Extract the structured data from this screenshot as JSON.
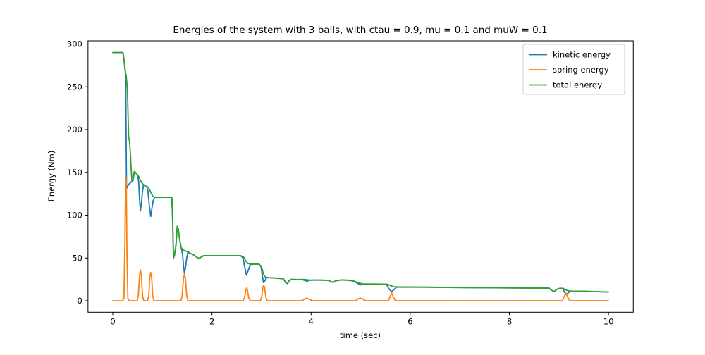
{
  "chart_data": {
    "type": "line",
    "title": "Energies of the system with 3 balls, with ctau = 0.9, mu = 0.1 and muW = 0.1",
    "xlabel": "time (sec)",
    "ylabel": "Energy (Nm)",
    "xlim": [
      -0.5,
      10.5
    ],
    "ylim": [
      -14.6,
      306.2
    ],
    "x_ticks": [
      0,
      2,
      4,
      6,
      8,
      10
    ],
    "y_ticks": [
      0,
      50,
      100,
      150,
      200,
      250,
      300
    ],
    "grid": false,
    "legend_position": "upper right",
    "background_color": "#ffffff",
    "spine_color": "#000000",
    "series": [
      {
        "name": "kinetic energy",
        "color": "#1f77b4",
        "points": [
          [
            0,
            290
          ],
          [
            0.205,
            290
          ],
          [
            0.225,
            282
          ],
          [
            0.245,
            271
          ],
          [
            0.26,
            265
          ],
          [
            0.27,
            180
          ],
          [
            0.278,
            131
          ],
          [
            0.29,
            133
          ],
          [
            0.32,
            136
          ],
          [
            0.36,
            138
          ],
          [
            0.385,
            140
          ],
          [
            0.405,
            140
          ],
          [
            0.435,
            151
          ],
          [
            0.465,
            149.5
          ],
          [
            0.5,
            146.5
          ],
          [
            0.52,
            140
          ],
          [
            0.54,
            118
          ],
          [
            0.558,
            105
          ],
          [
            0.578,
            115
          ],
          [
            0.6,
            128
          ],
          [
            0.62,
            135.5
          ],
          [
            0.65,
            134.5
          ],
          [
            0.685,
            133.3
          ],
          [
            0.71,
            128
          ],
          [
            0.74,
            110
          ],
          [
            0.765,
            98.5
          ],
          [
            0.79,
            108
          ],
          [
            0.815,
            117
          ],
          [
            0.845,
            120.8
          ],
          [
            1.19,
            121
          ],
          [
            1.205,
            100
          ],
          [
            1.225,
            50
          ],
          [
            1.245,
            53
          ],
          [
            1.275,
            65
          ],
          [
            1.3,
            87
          ],
          [
            1.32,
            84
          ],
          [
            1.35,
            71
          ],
          [
            1.38,
            62
          ],
          [
            1.405,
            55
          ],
          [
            1.425,
            42
          ],
          [
            1.445,
            32
          ],
          [
            1.465,
            38
          ],
          [
            1.49,
            50
          ],
          [
            1.515,
            56.5
          ],
          [
            1.58,
            55
          ],
          [
            1.64,
            53.5
          ],
          [
            1.69,
            51
          ],
          [
            1.73,
            49.6
          ],
          [
            1.77,
            50.5
          ],
          [
            1.82,
            52.4
          ],
          [
            1.87,
            52.7
          ],
          [
            2.58,
            52.7
          ],
          [
            2.625,
            50
          ],
          [
            2.66,
            40
          ],
          [
            2.695,
            30
          ],
          [
            2.73,
            35
          ],
          [
            2.77,
            42
          ],
          [
            2.81,
            43
          ],
          [
            2.95,
            42.8
          ],
          [
            2.99,
            40
          ],
          [
            3.015,
            30
          ],
          [
            3.04,
            21.2
          ],
          [
            3.065,
            23
          ],
          [
            3.09,
            26
          ],
          [
            3.12,
            27.2
          ],
          [
            3.3,
            26.5
          ],
          [
            3.44,
            25.8
          ],
          [
            3.49,
            21
          ],
          [
            3.525,
            20
          ],
          [
            3.56,
            23.5
          ],
          [
            3.6,
            25
          ],
          [
            3.72,
            24.8
          ],
          [
            3.82,
            24.8
          ],
          [
            3.87,
            23.7
          ],
          [
            3.92,
            23
          ],
          [
            3.97,
            23.9
          ],
          [
            4.05,
            24.2
          ],
          [
            4.2,
            24.1
          ],
          [
            4.35,
            23.9
          ],
          [
            4.41,
            22
          ],
          [
            4.445,
            21.6
          ],
          [
            4.5,
            23.4
          ],
          [
            4.6,
            24.3
          ],
          [
            4.75,
            24
          ],
          [
            4.87,
            22.8
          ],
          [
            4.95,
            20
          ],
          [
            5,
            18.5
          ],
          [
            5.05,
            19.3
          ],
          [
            5.3,
            19.5
          ],
          [
            5.52,
            19.2
          ],
          [
            5.57,
            14
          ],
          [
            5.625,
            10.5
          ],
          [
            5.67,
            13
          ],
          [
            5.72,
            16
          ],
          [
            6.3,
            15.9
          ],
          [
            7.2,
            15.3
          ],
          [
            8.2,
            14.9
          ],
          [
            8.8,
            14.8
          ],
          [
            8.86,
            12
          ],
          [
            8.9,
            10.7
          ],
          [
            8.96,
            13.5
          ],
          [
            9.02,
            14.6
          ],
          [
            9.08,
            14.4
          ],
          [
            9.115,
            10
          ],
          [
            9.15,
            7.2
          ],
          [
            9.185,
            9
          ],
          [
            9.22,
            11.2
          ],
          [
            9.45,
            11.2
          ],
          [
            10,
            10.2
          ]
        ]
      },
      {
        "name": "spring energy",
        "color": "#ff7f0e",
        "points": [
          [
            0,
            0
          ],
          [
            0.195,
            0
          ],
          [
            0.225,
            3
          ],
          [
            0.245,
            70
          ],
          [
            0.258,
            140
          ],
          [
            0.265,
            144
          ],
          [
            0.272,
            140
          ],
          [
            0.285,
            60
          ],
          [
            0.305,
            3
          ],
          [
            0.325,
            0
          ],
          [
            0.49,
            0
          ],
          [
            0.515,
            6
          ],
          [
            0.54,
            30
          ],
          [
            0.558,
            36
          ],
          [
            0.576,
            30
          ],
          [
            0.6,
            6
          ],
          [
            0.625,
            0
          ],
          [
            0.7,
            0
          ],
          [
            0.725,
            6
          ],
          [
            0.748,
            28
          ],
          [
            0.765,
            33
          ],
          [
            0.783,
            28
          ],
          [
            0.805,
            6
          ],
          [
            0.83,
            0
          ],
          [
            1.375,
            0
          ],
          [
            1.4,
            6
          ],
          [
            1.425,
            26
          ],
          [
            1.445,
            31
          ],
          [
            1.465,
            26
          ],
          [
            1.49,
            6
          ],
          [
            1.515,
            0
          ],
          [
            2.63,
            0
          ],
          [
            2.66,
            4
          ],
          [
            2.685,
            13
          ],
          [
            2.7,
            15
          ],
          [
            2.715,
            13
          ],
          [
            2.74,
            4
          ],
          [
            2.77,
            0
          ],
          [
            2.975,
            0
          ],
          [
            3.005,
            5
          ],
          [
            3.028,
            16
          ],
          [
            3.045,
            18
          ],
          [
            3.062,
            16
          ],
          [
            3.085,
            5
          ],
          [
            3.115,
            0
          ],
          [
            3.82,
            0
          ],
          [
            3.87,
            2.2
          ],
          [
            3.92,
            3
          ],
          [
            3.97,
            1.8
          ],
          [
            4.02,
            0
          ],
          [
            4.9,
            0
          ],
          [
            4.95,
            2.2
          ],
          [
            5,
            3
          ],
          [
            5.05,
            1.5
          ],
          [
            5.1,
            0
          ],
          [
            5.56,
            0
          ],
          [
            5.59,
            4
          ],
          [
            5.625,
            9.3
          ],
          [
            5.66,
            4
          ],
          [
            5.7,
            0
          ],
          [
            9.07,
            0
          ],
          [
            9.1,
            4
          ],
          [
            9.14,
            9.1
          ],
          [
            9.18,
            4
          ],
          [
            9.22,
            0
          ],
          [
            10,
            0
          ]
        ]
      },
      {
        "name": "total energy",
        "color": "#2ca02c",
        "points": [
          [
            0,
            290
          ],
          [
            0.205,
            290
          ],
          [
            0.225,
            282
          ],
          [
            0.245,
            271
          ],
          [
            0.27,
            263
          ],
          [
            0.295,
            248
          ],
          [
            0.31,
            212
          ],
          [
            0.32,
            191
          ],
          [
            0.335,
            187
          ],
          [
            0.355,
            172
          ],
          [
            0.37,
            155
          ],
          [
            0.385,
            141
          ],
          [
            0.405,
            140
          ],
          [
            0.435,
            151
          ],
          [
            0.465,
            149.5
          ],
          [
            0.5,
            147
          ],
          [
            0.53,
            144.5
          ],
          [
            0.555,
            141
          ],
          [
            0.58,
            138
          ],
          [
            0.615,
            136
          ],
          [
            0.65,
            134.5
          ],
          [
            0.685,
            133.5
          ],
          [
            0.72,
            132.5
          ],
          [
            0.75,
            129
          ],
          [
            0.78,
            125
          ],
          [
            0.81,
            122
          ],
          [
            0.84,
            121
          ],
          [
            1.19,
            121
          ],
          [
            1.205,
            100
          ],
          [
            1.225,
            50
          ],
          [
            1.245,
            53
          ],
          [
            1.275,
            65
          ],
          [
            1.3,
            87
          ],
          [
            1.32,
            84
          ],
          [
            1.35,
            71
          ],
          [
            1.38,
            62
          ],
          [
            1.42,
            59.5
          ],
          [
            1.47,
            58
          ],
          [
            1.52,
            57
          ],
          [
            1.58,
            55
          ],
          [
            1.64,
            53.5
          ],
          [
            1.69,
            51
          ],
          [
            1.73,
            49.6
          ],
          [
            1.77,
            50.5
          ],
          [
            1.82,
            52.4
          ],
          [
            1.87,
            52.7
          ],
          [
            2.58,
            52.7
          ],
          [
            2.64,
            51
          ],
          [
            2.69,
            46
          ],
          [
            2.73,
            43.5
          ],
          [
            2.77,
            43
          ],
          [
            2.95,
            42.8
          ],
          [
            3,
            40
          ],
          [
            3.04,
            31
          ],
          [
            3.08,
            27.5
          ],
          [
            3.12,
            27.2
          ],
          [
            3.3,
            26.5
          ],
          [
            3.44,
            25.8
          ],
          [
            3.49,
            21
          ],
          [
            3.525,
            20
          ],
          [
            3.56,
            23.5
          ],
          [
            3.6,
            25
          ],
          [
            3.72,
            24.8
          ],
          [
            3.85,
            25
          ],
          [
            3.95,
            24.3
          ],
          [
            4.05,
            24.2
          ],
          [
            4.2,
            24.1
          ],
          [
            4.35,
            23.9
          ],
          [
            4.41,
            22
          ],
          [
            4.445,
            21.6
          ],
          [
            4.5,
            23.4
          ],
          [
            4.6,
            24.3
          ],
          [
            4.75,
            24
          ],
          [
            4.87,
            23
          ],
          [
            4.95,
            21
          ],
          [
            5.05,
            19.6
          ],
          [
            5.3,
            19.5
          ],
          [
            5.55,
            19.3
          ],
          [
            5.6,
            17.8
          ],
          [
            5.66,
            16.5
          ],
          [
            5.72,
            16.2
          ],
          [
            6.3,
            15.9
          ],
          [
            7.2,
            15.3
          ],
          [
            8.2,
            14.9
          ],
          [
            8.8,
            14.8
          ],
          [
            8.86,
            12
          ],
          [
            8.9,
            10.7
          ],
          [
            8.96,
            13.5
          ],
          [
            9.02,
            14.6
          ],
          [
            9.09,
            14.5
          ],
          [
            9.13,
            13
          ],
          [
            9.18,
            11.8
          ],
          [
            9.24,
            11.3
          ],
          [
            9.45,
            11.2
          ],
          [
            10,
            10.2
          ]
        ]
      }
    ],
    "legend": {
      "entries": [
        "kinetic energy",
        "spring energy",
        "total energy"
      ],
      "border_color": "#cccccc",
      "background": "#ffffff"
    }
  }
}
